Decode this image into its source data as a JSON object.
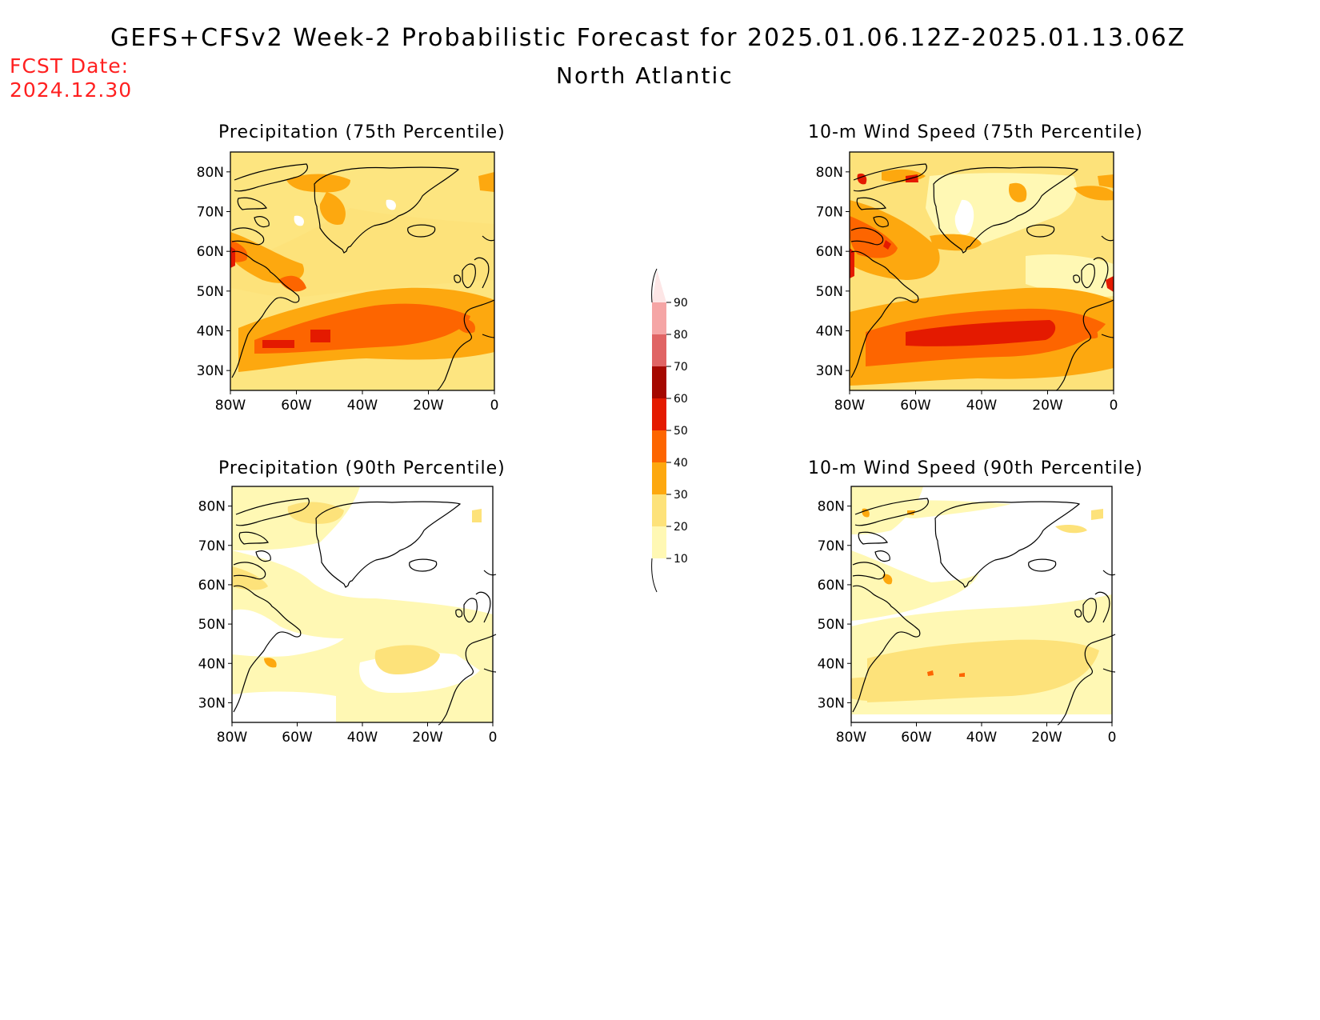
{
  "header": {
    "title": "GEFS+CFSv2 Week-2 Probabilistic Forecast for 2025.01.06.12Z-2025.01.13.06Z",
    "region": "North Atlantic",
    "fcst_label": "FCST Date:",
    "fcst_date": "2024.12.30"
  },
  "panels": [
    {
      "title": "Precipitation (75th Percentile)"
    },
    {
      "title": "10-m Wind Speed (75th Percentile)"
    },
    {
      "title": "Precipitation (90th Percentile)"
    },
    {
      "title": "10-m Wind Speed (90th Percentile)"
    }
  ],
  "axes": {
    "lat_ticks": [
      "80N",
      "70N",
      "60N",
      "50N",
      "40N",
      "30N"
    ],
    "lon_ticks": [
      "80W",
      "60W",
      "40W",
      "20W",
      "0"
    ]
  },
  "colorbar": {
    "labels": [
      "90",
      "80",
      "70",
      "60",
      "50",
      "40",
      "30",
      "20",
      "10"
    ],
    "colors": {
      "10": "#fff8b4",
      "20": "#fde27a",
      "30": "#fda80f",
      "40": "#fd6500",
      "50": "#e41a00",
      "60": "#a50800",
      "70": "#e06464",
      "80": "#f5a5a5",
      "90": "#fde6e6"
    }
  }
}
